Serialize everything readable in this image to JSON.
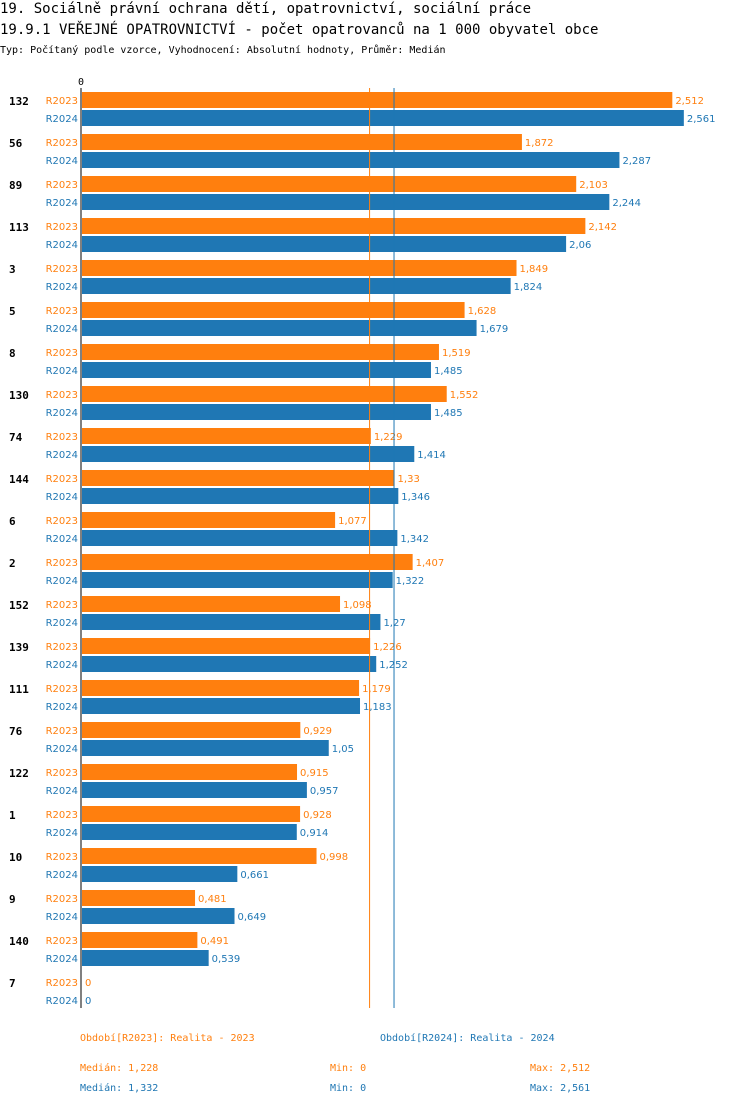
{
  "header": {
    "title": "19. Sociálně právní ochrana dětí, opatrovnictví, sociální práce",
    "subtitle": "19.9.1 VEŘEJNÉ OPATROVNICTVÍ - počet opatrovanců na 1 000 obyvatel obce",
    "description": "Typ: Počítaný podle vzorce, Vyhodnocení: Absolutní hodnoty, Průměr: Medián"
  },
  "colors": {
    "r2023": "#ff7f0e",
    "r2024": "#1f77b4"
  },
  "chart_data": {
    "type": "bar",
    "orientation": "horizontal",
    "axis_zero_label": "0",
    "xlim": [
      0,
      2.6
    ],
    "series_labels": [
      "R2023",
      "R2024"
    ],
    "categories": [
      "132",
      "56",
      "89",
      "113",
      "3",
      "5",
      "8",
      "130",
      "74",
      "144",
      "6",
      "2",
      "152",
      "139",
      "111",
      "76",
      "122",
      "1",
      "10",
      "9",
      "140",
      "7"
    ],
    "series": [
      {
        "name": "R2023",
        "values": [
          2.512,
          1.872,
          2.103,
          2.142,
          1.849,
          1.628,
          1.519,
          1.552,
          1.229,
          1.33,
          1.077,
          1.407,
          1.098,
          1.226,
          1.179,
          0.929,
          0.915,
          0.928,
          0.998,
          0.481,
          0.491,
          0
        ],
        "labels": [
          "2,512",
          "1,872",
          "2,103",
          "2,142",
          "1,849",
          "1,628",
          "1,519",
          "1,552",
          "1,229",
          "1,33",
          "1,077",
          "1,407",
          "1,098",
          "1,226",
          "1,179",
          "0,929",
          "0,915",
          "0,928",
          "0,998",
          "0,481",
          "0,491",
          "0"
        ]
      },
      {
        "name": "R2024",
        "values": [
          2.561,
          2.287,
          2.244,
          2.06,
          1.824,
          1.679,
          1.485,
          1.485,
          1.414,
          1.346,
          1.342,
          1.322,
          1.27,
          1.252,
          1.183,
          1.05,
          0.957,
          0.914,
          0.661,
          0.649,
          0.539,
          0
        ],
        "labels": [
          "2,561",
          "2,287",
          "2,244",
          "2,06",
          "1,824",
          "1,679",
          "1,485",
          "1,485",
          "1,414",
          "1,346",
          "1,342",
          "1,322",
          "1,27",
          "1,252",
          "1,183",
          "1,05",
          "0,957",
          "0,914",
          "0,661",
          "0,649",
          "0,539",
          "0"
        ]
      }
    ],
    "median_lines": {
      "R2023": 1.228,
      "R2024": 1.332
    }
  },
  "legend": {
    "r2023": "Období[R2023]: Realita - 2023",
    "r2024": "Období[R2024]: Realita - 2024"
  },
  "stats": {
    "r2023": {
      "median": "Medián: 1,228",
      "min": "Min: 0",
      "max": "Max: 2,512"
    },
    "r2024": {
      "median": "Medián: 1,332",
      "min": "Min: 0",
      "max": "Max: 2,561"
    }
  }
}
